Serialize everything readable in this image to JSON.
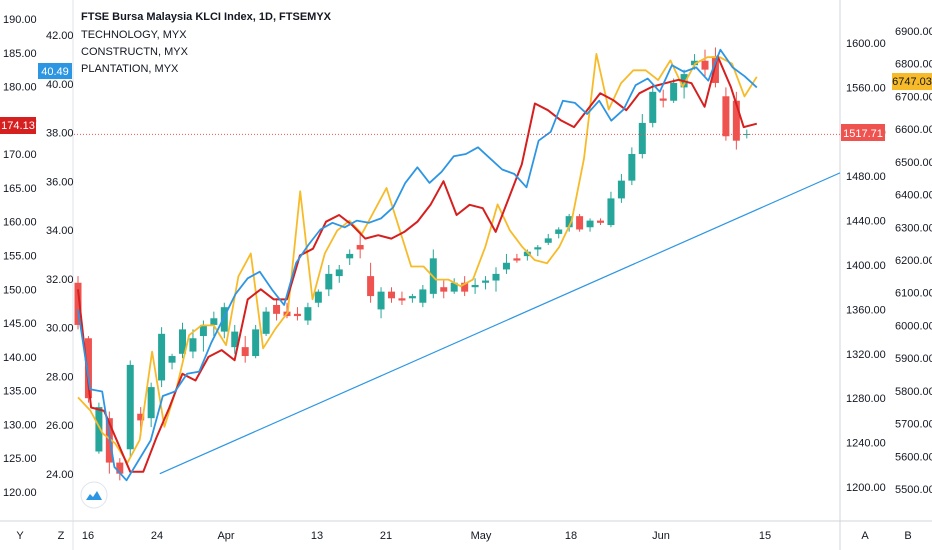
{
  "legend": [
    {
      "label": "FTSE Bursa Malaysia KLCI Index, 1D, FTSEMYX"
    },
    {
      "label": "TECHNOLOGY, MYX"
    },
    {
      "label": "CONSTRUCTN, MYX"
    },
    {
      "label": "PLANTATION, MYX"
    }
  ],
  "badges": {
    "left_blue": "40.49",
    "left_red": "174.13",
    "right_red": "1517.71",
    "right_yellow": "6747.03"
  },
  "bottom_bar": {
    "left": [
      "Y",
      "Z"
    ],
    "right": [
      "A",
      "B"
    ]
  },
  "colors": {
    "up": "#26a69a",
    "down": "#ef5350",
    "technology": "#f7bb2a",
    "constructn": "#d61f1f",
    "plantation": "#2d96e3",
    "trendline": "#2d96e3",
    "axis_text": "#131722"
  },
  "logo_icon": "tradingview-cloud-icon",
  "chart_data": {
    "type": "candlestick",
    "title": "FTSE Bursa Malaysia KLCI Index, 1D, FTSEMYX",
    "x_ticks": [
      "16",
      "24",
      "Apr",
      "13",
      "21",
      "May",
      "18",
      "Jun",
      "15"
    ],
    "axes": {
      "left_outer": {
        "ticks": [
          "120.00",
          "125.00",
          "130.00",
          "135.00",
          "140.00",
          "145.00",
          "150.00",
          "155.00",
          "160.00",
          "165.00",
          "170.00",
          "175.00",
          "180.00",
          "185.00",
          "190.00"
        ],
        "range": [
          117.5,
          192.5
        ]
      },
      "left_inner": {
        "ticks": [
          "24.00",
          "26.00",
          "28.00",
          "30.00",
          "32.00",
          "34.00",
          "36.00",
          "38.00",
          "40.00",
          "42.00"
        ],
        "range": [
          23.0,
          43.2
        ]
      },
      "right_inner": {
        "ticks": [
          "1200.00",
          "1240.00",
          "1280.00",
          "1320.00",
          "1360.00",
          "1400.00",
          "1440.00",
          "1480.00",
          "1520.00",
          "1560.00",
          "1600.00"
        ],
        "range": [
          1184,
          1620
        ]
      },
      "right_outer": {
        "ticks": [
          "5500.00",
          "5600.00",
          "5700.00",
          "5800.00",
          "5900.00",
          "6000.00",
          "6100.00",
          "6200.00",
          "6300.00",
          "6400.00",
          "6500.00",
          "6600.00",
          "6700.00",
          "6800.00",
          "6900.00"
        ],
        "range": [
          5450,
          6955
        ]
      }
    },
    "candles": [
      [
        1384,
        1390,
        1342,
        1346
      ],
      [
        1334,
        1336,
        1276,
        1280
      ],
      [
        1232,
        1276,
        1230,
        1272
      ],
      [
        1262,
        1268,
        1212,
        1222
      ],
      [
        1222,
        1226,
        1206,
        1212
      ],
      [
        1234,
        1314,
        1226,
        1310
      ],
      [
        1266,
        1272,
        1246,
        1260
      ],
      [
        1262,
        1294,
        1254,
        1290
      ],
      [
        1296,
        1344,
        1290,
        1338
      ],
      [
        1312,
        1320,
        1306,
        1318
      ],
      [
        1320,
        1348,
        1316,
        1342
      ],
      [
        1322,
        1342,
        1316,
        1334
      ],
      [
        1336,
        1350,
        1322,
        1346
      ],
      [
        1346,
        1358,
        1336,
        1352
      ],
      [
        1340,
        1366,
        1334,
        1362
      ],
      [
        1326,
        1346,
        1320,
        1340
      ],
      [
        1326,
        1336,
        1312,
        1318
      ],
      [
        1318,
        1346,
        1316,
        1342
      ],
      [
        1338,
        1362,
        1336,
        1358
      ],
      [
        1364,
        1370,
        1350,
        1356
      ],
      [
        1358,
        1366,
        1352,
        1354
      ],
      [
        1356,
        1362,
        1350,
        1354
      ],
      [
        1350,
        1366,
        1346,
        1362
      ],
      [
        1366,
        1378,
        1362,
        1376
      ],
      [
        1378,
        1400,
        1372,
        1392
      ],
      [
        1390,
        1400,
        1384,
        1396
      ],
      [
        1406,
        1414,
        1400,
        1410
      ],
      [
        1418,
        1430,
        1406,
        1414
      ],
      [
        1390,
        1402,
        1366,
        1372
      ],
      [
        1360,
        1380,
        1352,
        1376
      ],
      [
        1376,
        1380,
        1366,
        1370
      ],
      [
        1370,
        1376,
        1364,
        1368
      ],
      [
        1370,
        1374,
        1366,
        1372
      ],
      [
        1366,
        1382,
        1362,
        1378
      ],
      [
        1374,
        1414,
        1370,
        1406
      ],
      [
        1380,
        1386,
        1370,
        1376
      ],
      [
        1376,
        1388,
        1374,
        1384
      ],
      [
        1384,
        1390,
        1372,
        1376
      ],
      [
        1380,
        1388,
        1374,
        1382
      ],
      [
        1384,
        1390,
        1378,
        1386
      ],
      [
        1386,
        1398,
        1376,
        1392
      ],
      [
        1396,
        1410,
        1392,
        1402
      ],
      [
        1406,
        1410,
        1402,
        1404
      ],
      [
        1408,
        1414,
        1404,
        1412
      ],
      [
        1414,
        1418,
        1408,
        1416
      ],
      [
        1420,
        1428,
        1418,
        1424
      ],
      [
        1428,
        1434,
        1424,
        1432
      ],
      [
        1434,
        1446,
        1430,
        1444
      ],
      [
        1444,
        1446,
        1430,
        1432
      ],
      [
        1434,
        1442,
        1430,
        1440
      ],
      [
        1440,
        1442,
        1436,
        1438
      ],
      [
        1436,
        1466,
        1434,
        1460
      ],
      [
        1460,
        1482,
        1456,
        1476
      ],
      [
        1476,
        1506,
        1472,
        1500
      ],
      [
        1500,
        1536,
        1496,
        1528
      ],
      [
        1528,
        1562,
        1524,
        1556
      ],
      [
        1550,
        1558,
        1542,
        1548
      ],
      [
        1548,
        1568,
        1546,
        1564
      ],
      [
        1560,
        1576,
        1550,
        1572
      ],
      [
        1580,
        1590,
        1576,
        1584
      ],
      [
        1584,
        1594,
        1570,
        1576
      ],
      [
        1588,
        1596,
        1560,
        1564
      ],
      [
        1552,
        1560,
        1512,
        1516
      ],
      [
        1548,
        1556,
        1504,
        1512
      ],
      [
        1518,
        1522,
        1514,
        1518
      ]
    ],
    "series": [
      {
        "name": "TECHNOLOGY, MYX",
        "axis": "right_outer",
        "values": [
          5780,
          5740,
          5670,
          5640,
          5580,
          5650,
          5920,
          5690,
          5810,
          5970,
          6000,
          6000,
          5940,
          6150,
          6220,
          5930,
          5990,
          6040,
          6410,
          6080,
          6220,
          6290,
          6320,
          6280,
          6350,
          6420,
          6300,
          6180,
          6180,
          6140,
          6140,
          6120,
          6140,
          6240,
          6370,
          6290,
          6240,
          6200,
          6190,
          6240,
          6320,
          6510,
          6830,
          6660,
          6740,
          6780,
          6780,
          6750,
          6810,
          6730,
          6800,
          6820,
          6820,
          6800,
          6700,
          6760
        ]
      },
      {
        "name": "CONSTRUCTN, MYX",
        "axis": "left_outer",
        "values": [
          150.0,
          132.5,
          132.0,
          127.5,
          123.0,
          123.0,
          128.0,
          132.5,
          137.5,
          136.5,
          140.0,
          141.0,
          139.5,
          148.5,
          150.0,
          148.5,
          148.5,
          155.0,
          156.0,
          160.0,
          161.0,
          159.5,
          157.5,
          158.0,
          157.5,
          158.5,
          160.0,
          162.5,
          166.0,
          161.0,
          162.5,
          162.0,
          158.5,
          163.5,
          168.5,
          177.5,
          176.5,
          175.0,
          174.0,
          176.5,
          179.0,
          178.0,
          176.5,
          179.0,
          180.0,
          180.5,
          181.0,
          180.5,
          177.0,
          184.5,
          180.0,
          174.0,
          174.5
        ]
      },
      {
        "name": "PLANTATION, MYX",
        "axis": "right_inner",
        "values": [
          1360,
          1288,
          1286,
          1218,
          1206,
          1224,
          1242,
          1282,
          1286,
          1302,
          1304,
          1330,
          1352,
          1374,
          1388,
          1394,
          1378,
          1364,
          1402,
          1418,
          1432,
          1438,
          1434,
          1440,
          1438,
          1442,
          1452,
          1474,
          1488,
          1474,
          1484,
          1498,
          1500,
          1506,
          1496,
          1486,
          1482,
          1470,
          1512,
          1520,
          1548,
          1546,
          1536,
          1548,
          1530,
          1540,
          1562,
          1568,
          1556,
          1580,
          1574,
          1578,
          1566,
          1594,
          1578,
          1570,
          1560
        ]
      }
    ],
    "trendline": {
      "axis": "right_inner",
      "from": [
        4,
        1212
      ],
      "to": [
        67,
        1492
      ]
    },
    "price_line": {
      "axis": "right_inner",
      "value": 1517.71
    },
    "grid": "none",
    "legend_position": "top-left"
  }
}
